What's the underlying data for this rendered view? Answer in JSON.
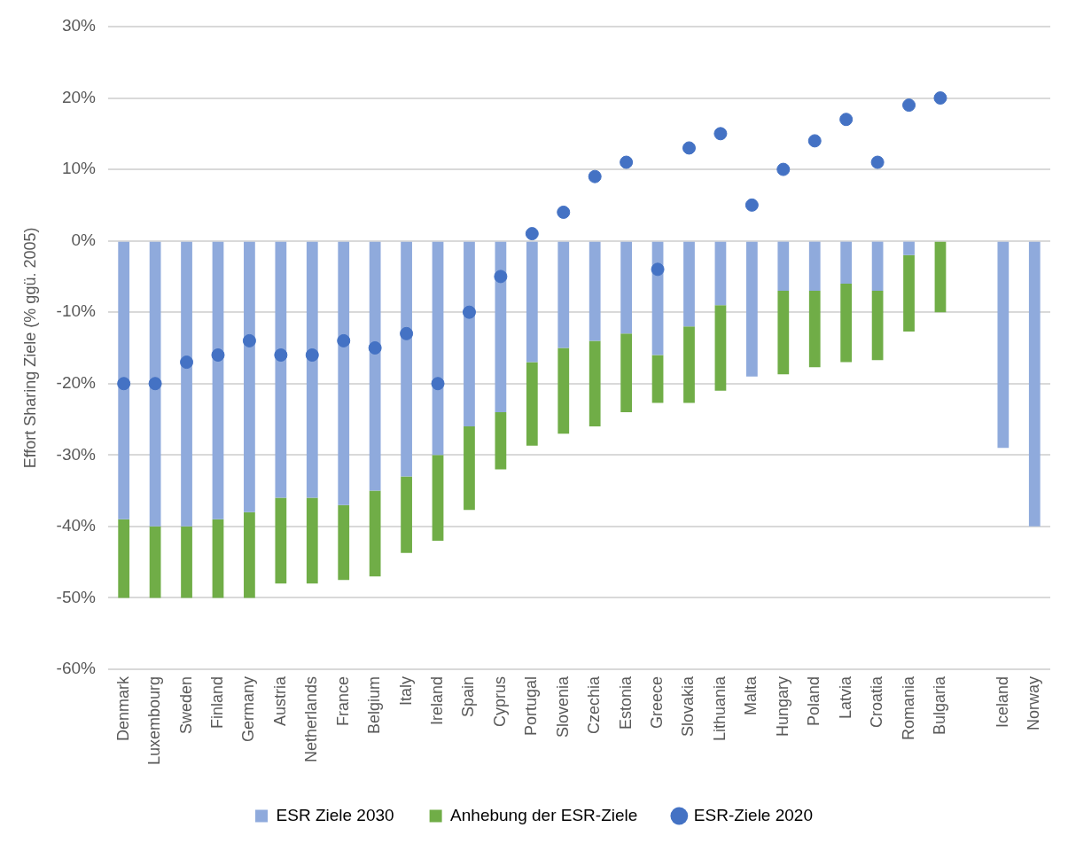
{
  "chart_data": {
    "type": "bar",
    "ylabel": "Effort Sharing Ziele (% ggü. 2005)",
    "categories": [
      "Denmark",
      "Luxembourg",
      "Sweden",
      "Finland",
      "Germany",
      "Austria",
      "Netherlands",
      "France",
      "Belgium",
      "Italy",
      "Ireland",
      "Spain",
      "Cyprus",
      "Portugal",
      "Slovenia",
      "Czechia",
      "Estonia",
      "Greece",
      "Slovakia",
      "Lithuania",
      "Malta",
      "Hungary",
      "Poland",
      "Latvia",
      "Croatia",
      "Romania",
      "Bulgaria",
      null,
      "Iceland",
      "Norway"
    ],
    "stacked": true,
    "series": [
      {
        "name": "ESR Ziele 2030",
        "color": "#8faadc",
        "values": [
          -39,
          -40,
          -40,
          -39,
          -38,
          -36,
          -36,
          -37,
          -35,
          -33,
          -30,
          -26,
          -24,
          -17,
          -15,
          -14,
          -13,
          -16,
          -12,
          -9,
          -19,
          -7,
          -7,
          -6,
          -7,
          -2,
          0,
          null,
          -29,
          -40
        ]
      },
      {
        "name": "Anhebung der ESR-Ziele",
        "color": "#70ad47",
        "values": [
          -11,
          -10,
          -10,
          -11,
          -12,
          -12,
          -12,
          -10.5,
          -12,
          -10.7,
          -12,
          -11.7,
          -8,
          -11.7,
          -12,
          -12,
          -11,
          -6.7,
          -10.7,
          -12,
          0,
          -11.7,
          -10.7,
          -11,
          -9.7,
          -10.7,
          -10,
          null,
          null,
          null
        ]
      },
      {
        "name": "ESR-Ziele 2020",
        "type": "scatter",
        "marker": "circle",
        "color": "#4472c4",
        "values": [
          -20,
          -20,
          -17,
          -16,
          -14,
          -16,
          -16,
          -14,
          -15,
          -13,
          -20,
          -10,
          -5,
          1,
          4,
          9,
          11,
          -4,
          13,
          15,
          5,
          10,
          14,
          17,
          11,
          19,
          20,
          null,
          null,
          null
        ]
      }
    ],
    "ylim": [
      -60,
      30
    ],
    "yticks": [
      {
        "value": -60,
        "label": "-60%"
      },
      {
        "value": -50,
        "label": "-50%"
      },
      {
        "value": -40,
        "label": "-40%"
      },
      {
        "value": -30,
        "label": "-30%"
      },
      {
        "value": -20,
        "label": "-20%"
      },
      {
        "value": -10,
        "label": "-10%"
      },
      {
        "value": 0,
        "label": "0%"
      },
      {
        "value": 10,
        "label": "10%"
      },
      {
        "value": 20,
        "label": "20%"
      },
      {
        "value": 30,
        "label": "30%"
      }
    ],
    "grid": "y",
    "legend": "bottom"
  }
}
